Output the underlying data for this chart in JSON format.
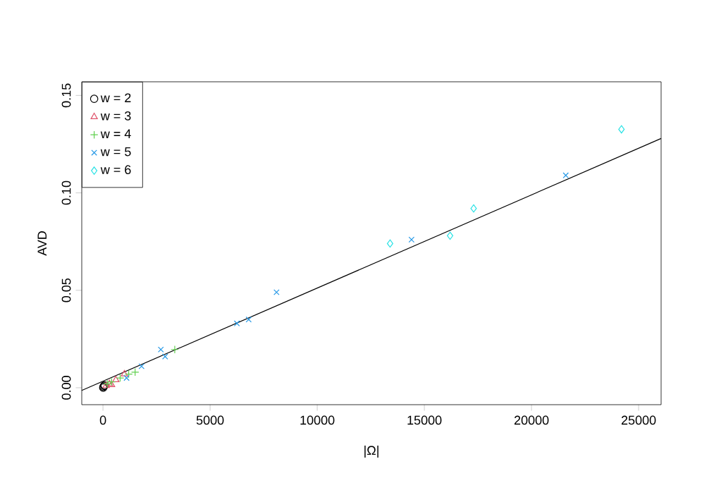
{
  "chart_data": {
    "type": "scatter",
    "xlabel": "|Ω|",
    "ylabel": "AVD",
    "xlim": [
      -990,
      26050
    ],
    "ylim": [
      -0.0087,
      0.157
    ],
    "xticks": [
      0,
      5000,
      10000,
      15000,
      20000,
      25000
    ],
    "yticks": [
      {
        "value": 0,
        "label": "0.00"
      },
      {
        "value": 0.05,
        "label": "0.05"
      },
      {
        "value": 0.1,
        "label": "0.10"
      },
      {
        "value": 0.15,
        "label": "0.15"
      }
    ],
    "grid": false,
    "legend": "top left",
    "series": [
      {
        "name": "w = 2",
        "color": "#000000",
        "marker": "circle",
        "x": [
          10,
          20,
          50,
          80
        ],
        "values": [
          0.0,
          0.0005,
          0.001,
          0.0012
        ]
      },
      {
        "name": "w = 3",
        "color": "#DF536B",
        "marker": "triangle",
        "x": [
          150,
          300,
          400,
          600,
          1000
        ],
        "values": [
          0.001,
          0.002,
          0.0015,
          0.004,
          0.007
        ]
      },
      {
        "name": "w = 4",
        "color": "#61D04F",
        "marker": "plus",
        "x": [
          200,
          400,
          800,
          1200,
          1500,
          3350
        ],
        "values": [
          0.002,
          0.003,
          0.005,
          0.007,
          0.008,
          0.0196
        ]
      },
      {
        "name": "w = 5",
        "color": "#2297E6",
        "marker": "cross",
        "x": [
          1100,
          1800,
          2700,
          2900,
          6250,
          6800,
          8100,
          14400,
          21600
        ],
        "values": [
          0.005,
          0.011,
          0.0196,
          0.016,
          0.033,
          0.035,
          0.049,
          0.076,
          0.109
        ]
      },
      {
        "name": "w = 6",
        "color": "#28E2E5",
        "marker": "diamond",
        "x": [
          13400,
          16200,
          17300,
          24200
        ],
        "values": [
          0.074,
          0.078,
          0.092,
          0.1326
        ]
      },
      {
        "type": "line",
        "color": "#000000",
        "x": [
          -990,
          26050
        ],
        "values": [
          -0.0014,
          0.1279
        ]
      }
    ]
  }
}
